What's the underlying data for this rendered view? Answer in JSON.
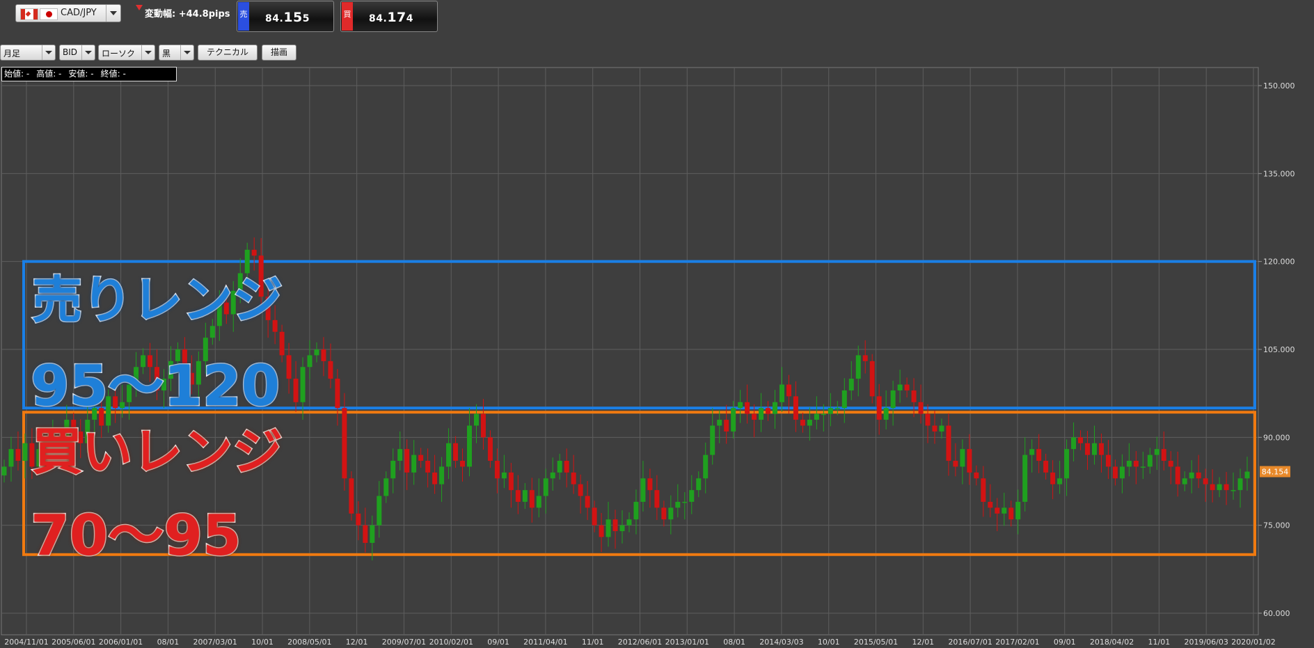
{
  "header": {
    "pair_label": "CAD/JPY",
    "change_label": "変動幅: +44.8pips",
    "sell": {
      "tag": "売",
      "prefix": "84.",
      "big": "15",
      "suffix": "5",
      "color": "#2b4fe0"
    },
    "buy": {
      "tag": "買",
      "prefix": "84.",
      "big": "17",
      "suffix": "4",
      "color": "#e02a2a"
    }
  },
  "toolbar": {
    "period": "月足",
    "side": "BID",
    "chart_style": "ローソク",
    "color": "黒",
    "technical_label": "テクニカル",
    "draw_label": "描画"
  },
  "ohlc": {
    "open": "始値: -",
    "high": "高値: -",
    "low": "安値: -",
    "close": "終値: -"
  },
  "chart_data": {
    "type": "candlestick",
    "ylim": [
      58,
      152
    ],
    "y_ticks": [
      "150.000",
      "135.000",
      "120.000",
      "105.000",
      "90.000",
      "75.000",
      "60.000"
    ],
    "y_tick_values": [
      150,
      135,
      120,
      105,
      90,
      75,
      60
    ],
    "x_ticks": [
      "2004/11/01",
      "2005/06/01",
      "2006/01/01",
      "08/01",
      "2007/03/01",
      "10/01",
      "2008/05/01",
      "12/01",
      "2009/07/01",
      "2010/02/01",
      "09/01",
      "2011/04/01",
      "11/01",
      "2012/06/01",
      "2013/01/01",
      "08/01",
      "2014/03/03",
      "10/01",
      "2015/05/01",
      "12/01",
      "2016/07/01",
      "2017/02/01",
      "09/01",
      "2018/04/02",
      "11/01",
      "2019/06/03",
      "2020/01/02"
    ],
    "current_price_label": "84.154",
    "current_price": 84.154,
    "up_color": "#1fa01f",
    "down_color": "#d21313",
    "closes": [
      85,
      88,
      86,
      89,
      85,
      88,
      87,
      90,
      88,
      93,
      91,
      89,
      93,
      95,
      92,
      97,
      95,
      96,
      99,
      102,
      104,
      102,
      98,
      100,
      103,
      105,
      101,
      99,
      103,
      107,
      109,
      113,
      111,
      115,
      118,
      122,
      121,
      114,
      110,
      108,
      104,
      100,
      96,
      102,
      104,
      105,
      103,
      100,
      95,
      83,
      77,
      75,
      72,
      75,
      80,
      83,
      86,
      88,
      84,
      87,
      86,
      84,
      82,
      85,
      89,
      86,
      85,
      92,
      94,
      90,
      86,
      83,
      84,
      81,
      79,
      81,
      78,
      80,
      83,
      84,
      86,
      84,
      82,
      80,
      78,
      75,
      73,
      76,
      74,
      75,
      76,
      79,
      83,
      81,
      78,
      76,
      78,
      79,
      79,
      81,
      83,
      87,
      92,
      93,
      91,
      95,
      96,
      94,
      93,
      95,
      94,
      96,
      99,
      97,
      93,
      92,
      93,
      94,
      94,
      95,
      95,
      98,
      100,
      104,
      103,
      97,
      93,
      95,
      98,
      99,
      98,
      96,
      94,
      92,
      91,
      92,
      86,
      85,
      88,
      84,
      83,
      79,
      78,
      77,
      78,
      76,
      79,
      87,
      88,
      86,
      84,
      82,
      83,
      88,
      90,
      89,
      87,
      89,
      87,
      85,
      83,
      85,
      86,
      85,
      85,
      87,
      88,
      86,
      85,
      82,
      83,
      84,
      83,
      82,
      81,
      82,
      81,
      81,
      83,
      84.154
    ]
  },
  "overlay": {
    "sell_title": "売りレンジ",
    "sell_range": "95～120",
    "buy_title": "買いレンジ",
    "buy_range": "70～95",
    "sell_box_color": "#1a7fe6",
    "buy_box_color": "#f07a10",
    "sell_band": [
      95,
      120
    ],
    "buy_band": [
      70,
      95
    ]
  }
}
